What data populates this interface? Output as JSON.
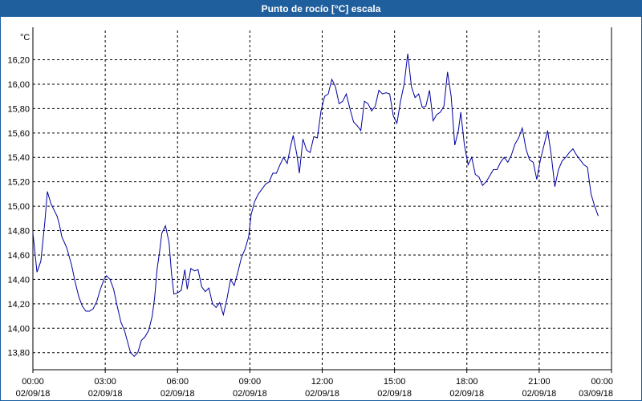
{
  "window": {
    "title": "Punto de rocío [°C] escala"
  },
  "colors": {
    "titlebar": "#1f5f9e",
    "series": "#0000a0",
    "grid": "#000000"
  },
  "chart_data": {
    "type": "line",
    "title": "Punto de rocío [°C] escala",
    "ylabel": "°C",
    "xlabel": "",
    "ylim": [
      13.66,
      16.44
    ],
    "xlim": [
      0,
      24
    ],
    "grid": true,
    "y_ticks": [
      "13,80",
      "14,00",
      "14,20",
      "14,40",
      "14,60",
      "14,80",
      "15,00",
      "15,20",
      "15,40",
      "15,60",
      "15,80",
      "16,00",
      "16,20"
    ],
    "y_tick_values": [
      13.8,
      14.0,
      14.2,
      14.4,
      14.6,
      14.8,
      15.0,
      15.2,
      15.4,
      15.6,
      15.8,
      16.0,
      16.2
    ],
    "x_ticks": [
      {
        "time": "00:00",
        "date": "02/09/18"
      },
      {
        "time": "03:00",
        "date": "02/09/18"
      },
      {
        "time": "06:00",
        "date": "02/09/18"
      },
      {
        "time": "09:00",
        "date": "02/09/18"
      },
      {
        "time": "12:00",
        "date": "02/09/18"
      },
      {
        "time": "15:00",
        "date": "02/09/18"
      },
      {
        "time": "18:00",
        "date": "02/09/18"
      },
      {
        "time": "21:00",
        "date": "02/09/18"
      },
      {
        "time": "00:00",
        "date": "03/09/18"
      }
    ],
    "x_tick_values": [
      0,
      3,
      6,
      9,
      12,
      15,
      18,
      21,
      24
    ],
    "series": [
      {
        "points": [
          [
            0.0,
            14.78
          ],
          [
            0.17,
            14.46
          ],
          [
            0.33,
            14.55
          ],
          [
            0.5,
            14.88
          ],
          [
            0.6,
            15.12
          ],
          [
            0.75,
            15.02
          ],
          [
            0.9,
            14.96
          ],
          [
            1.0,
            14.92
          ],
          [
            1.1,
            14.85
          ],
          [
            1.2,
            14.75
          ],
          [
            1.4,
            14.66
          ],
          [
            1.6,
            14.52
          ],
          [
            1.75,
            14.38
          ],
          [
            1.9,
            14.26
          ],
          [
            2.05,
            14.18
          ],
          [
            2.2,
            14.14
          ],
          [
            2.35,
            14.14
          ],
          [
            2.5,
            14.16
          ],
          [
            2.65,
            14.22
          ],
          [
            2.8,
            14.32
          ],
          [
            2.95,
            14.4
          ],
          [
            3.05,
            14.43
          ],
          [
            3.2,
            14.4
          ],
          [
            3.35,
            14.32
          ],
          [
            3.5,
            14.18
          ],
          [
            3.65,
            14.05
          ],
          [
            3.8,
            13.98
          ],
          [
            3.95,
            13.87
          ],
          [
            4.05,
            13.8
          ],
          [
            4.2,
            13.77
          ],
          [
            4.35,
            13.8
          ],
          [
            4.5,
            13.9
          ],
          [
            4.65,
            13.93
          ],
          [
            4.8,
            13.98
          ],
          [
            4.95,
            14.1
          ],
          [
            5.05,
            14.25
          ],
          [
            5.15,
            14.48
          ],
          [
            5.25,
            14.62
          ],
          [
            5.35,
            14.78
          ],
          [
            5.5,
            14.84
          ],
          [
            5.65,
            14.7
          ],
          [
            5.75,
            14.45
          ],
          [
            5.85,
            14.28
          ],
          [
            6.0,
            14.29
          ],
          [
            6.15,
            14.31
          ],
          [
            6.3,
            14.48
          ],
          [
            6.4,
            14.32
          ],
          [
            6.55,
            14.49
          ],
          [
            6.7,
            14.47
          ],
          [
            6.85,
            14.48
          ],
          [
            7.0,
            14.34
          ],
          [
            7.15,
            14.3
          ],
          [
            7.3,
            14.33
          ],
          [
            7.45,
            14.2
          ],
          [
            7.6,
            14.17
          ],
          [
            7.75,
            14.21
          ],
          [
            7.9,
            14.11
          ],
          [
            8.05,
            14.24
          ],
          [
            8.2,
            14.4
          ],
          [
            8.35,
            14.35
          ],
          [
            8.5,
            14.46
          ],
          [
            8.65,
            14.58
          ],
          [
            8.8,
            14.65
          ],
          [
            8.95,
            14.75
          ],
          [
            9.05,
            14.93
          ],
          [
            9.2,
            15.04
          ],
          [
            9.35,
            15.1
          ],
          [
            9.5,
            15.14
          ],
          [
            9.65,
            15.18
          ],
          [
            9.8,
            15.2
          ],
          [
            9.95,
            15.27
          ],
          [
            10.1,
            15.27
          ],
          [
            10.25,
            15.34
          ],
          [
            10.4,
            15.4
          ],
          [
            10.55,
            15.35
          ],
          [
            10.7,
            15.5
          ],
          [
            10.8,
            15.58
          ],
          [
            10.95,
            15.42
          ],
          [
            11.05,
            15.27
          ],
          [
            11.2,
            15.55
          ],
          [
            11.35,
            15.46
          ],
          [
            11.5,
            15.44
          ],
          [
            11.65,
            15.57
          ],
          [
            11.8,
            15.56
          ],
          [
            11.95,
            15.78
          ],
          [
            12.1,
            15.9
          ],
          [
            12.25,
            15.92
          ],
          [
            12.4,
            16.04
          ],
          [
            12.55,
            15.98
          ],
          [
            12.7,
            15.84
          ],
          [
            12.85,
            15.86
          ],
          [
            13.0,
            15.92
          ],
          [
            13.15,
            15.8
          ],
          [
            13.3,
            15.69
          ],
          [
            13.45,
            15.66
          ],
          [
            13.6,
            15.62
          ],
          [
            13.75,
            15.86
          ],
          [
            13.9,
            15.84
          ],
          [
            14.05,
            15.78
          ],
          [
            14.2,
            15.82
          ],
          [
            14.35,
            15.95
          ],
          [
            14.5,
            15.92
          ],
          [
            14.65,
            15.93
          ],
          [
            14.8,
            15.92
          ],
          [
            14.95,
            15.74
          ],
          [
            15.1,
            15.68
          ],
          [
            15.25,
            15.86
          ],
          [
            15.4,
            16.0
          ],
          [
            15.55,
            16.25
          ],
          [
            15.7,
            15.98
          ],
          [
            15.85,
            15.89
          ],
          [
            16.0,
            15.92
          ],
          [
            16.15,
            15.81
          ],
          [
            16.3,
            15.82
          ],
          [
            16.45,
            15.95
          ],
          [
            16.6,
            15.7
          ],
          [
            16.75,
            15.75
          ],
          [
            16.9,
            15.77
          ],
          [
            17.05,
            15.82
          ],
          [
            17.2,
            16.1
          ],
          [
            17.35,
            15.9
          ],
          [
            17.5,
            15.5
          ],
          [
            17.65,
            15.62
          ],
          [
            17.75,
            15.77
          ],
          [
            17.9,
            15.5
          ],
          [
            18.05,
            15.34
          ],
          [
            18.2,
            15.4
          ],
          [
            18.35,
            15.26
          ],
          [
            18.5,
            15.24
          ],
          [
            18.65,
            15.17
          ],
          [
            18.8,
            15.2
          ],
          [
            18.95,
            15.25
          ],
          [
            19.1,
            15.3
          ],
          [
            19.25,
            15.3
          ],
          [
            19.4,
            15.36
          ],
          [
            19.55,
            15.4
          ],
          [
            19.7,
            15.36
          ],
          [
            19.85,
            15.42
          ],
          [
            20.0,
            15.51
          ],
          [
            20.15,
            15.56
          ],
          [
            20.3,
            15.64
          ],
          [
            20.45,
            15.47
          ],
          [
            20.6,
            15.38
          ],
          [
            20.75,
            15.36
          ],
          [
            20.9,
            15.22
          ],
          [
            21.05,
            15.38
          ],
          [
            21.2,
            15.5
          ],
          [
            21.35,
            15.62
          ],
          [
            21.5,
            15.42
          ],
          [
            21.65,
            15.16
          ],
          [
            21.8,
            15.3
          ],
          [
            21.95,
            15.37
          ],
          [
            22.1,
            15.4
          ],
          [
            22.25,
            15.44
          ],
          [
            22.4,
            15.47
          ],
          [
            22.55,
            15.42
          ],
          [
            22.7,
            15.38
          ],
          [
            22.85,
            15.34
          ],
          [
            23.0,
            15.32
          ],
          [
            23.15,
            15.1
          ],
          [
            23.3,
            15.0
          ],
          [
            23.45,
            14.92
          ]
        ]
      }
    ]
  }
}
